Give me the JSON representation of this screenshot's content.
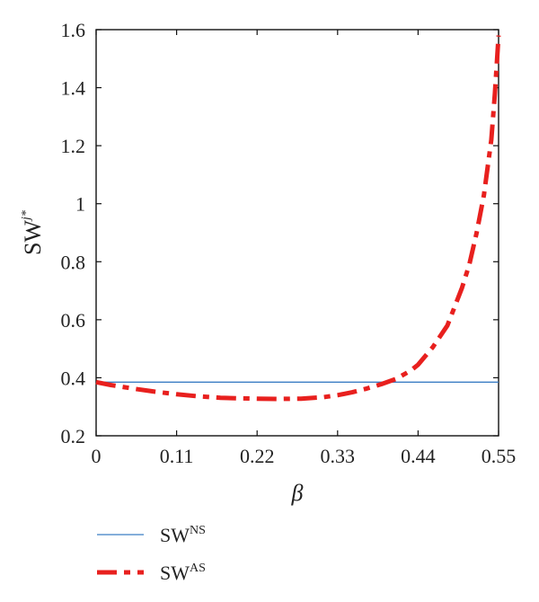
{
  "chart_data": {
    "type": "line",
    "xlabel": "β",
    "ylabel": {
      "base": "SW",
      "sup": "j*"
    },
    "xlim": [
      0,
      0.55
    ],
    "ylim": [
      0.2,
      1.6
    ],
    "x_ticks": [
      "0",
      "0.11",
      "0.22",
      "0.33",
      "0.44",
      "0.55"
    ],
    "x_tick_values": [
      0,
      0.11,
      0.22,
      0.33,
      0.44,
      0.55
    ],
    "y_ticks": [
      "0.2",
      "0.4",
      "0.6",
      "0.8",
      "1",
      "1.2",
      "1.4",
      "1.6"
    ],
    "y_tick_values": [
      0.2,
      0.4,
      0.6,
      0.8,
      1.0,
      1.2,
      1.4,
      1.6
    ],
    "grid": false,
    "legend_position": "bottom-left, below plot",
    "series": [
      {
        "name": {
          "base": "SW",
          "sup": "NS"
        },
        "color": "#3b7dc4",
        "style": "solid-thin",
        "x": [
          0,
          0.55
        ],
        "y": [
          0.385,
          0.385
        ]
      },
      {
        "name": {
          "base": "SW",
          "sup": "AS"
        },
        "color": "#e8201e",
        "style": "dash-dot-thick",
        "x": [
          0,
          0.02,
          0.05,
          0.08,
          0.11,
          0.14,
          0.17,
          0.2,
          0.22,
          0.25,
          0.28,
          0.31,
          0.33,
          0.35,
          0.37,
          0.39,
          0.41,
          0.43,
          0.44,
          0.46,
          0.48,
          0.5,
          0.51,
          0.52,
          0.53,
          0.54,
          0.545,
          0.55
        ],
        "y": [
          0.385,
          0.375,
          0.363,
          0.352,
          0.343,
          0.336,
          0.331,
          0.329,
          0.328,
          0.327,
          0.328,
          0.333,
          0.34,
          0.35,
          0.363,
          0.378,
          0.396,
          0.425,
          0.445,
          0.505,
          0.58,
          0.71,
          0.79,
          0.9,
          1.03,
          1.22,
          1.38,
          1.58
        ]
      }
    ]
  }
}
